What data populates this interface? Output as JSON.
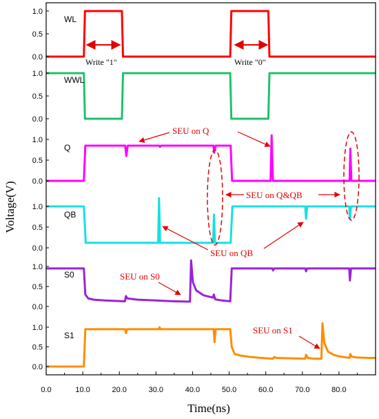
{
  "chart_data": {
    "type": "line",
    "xlabel": "Time(ns)",
    "ylabel": "Voltage(V)",
    "xlim": [
      0,
      90
    ],
    "x_ticks": [
      "0.0",
      "10.0",
      "20.0",
      "30.0",
      "40.0",
      "50.0",
      "60.0",
      "70.0",
      "80.0"
    ],
    "grid": false,
    "panels": [
      {
        "name": "WL",
        "color": "#ff0000",
        "ylim": [
          0,
          1
        ],
        "y_ticks": [
          "0.0",
          "0.5",
          "1.0"
        ],
        "points": [
          [
            0,
            0
          ],
          [
            10.3,
            0
          ],
          [
            10.6,
            1
          ],
          [
            20.7,
            1
          ],
          [
            21,
            0
          ],
          [
            50.3,
            0
          ],
          [
            50.6,
            1
          ],
          [
            60.7,
            1
          ],
          [
            61,
            0
          ],
          [
            90,
            0
          ]
        ]
      },
      {
        "name": "WWL",
        "color": "#1fc06a",
        "ylim": [
          0,
          1
        ],
        "y_ticks": [
          "0.0",
          "0.5",
          "1.0"
        ],
        "points": [
          [
            0,
            1
          ],
          [
            10.3,
            1
          ],
          [
            10.6,
            0
          ],
          [
            20.7,
            0
          ],
          [
            21,
            1
          ],
          [
            50.3,
            1
          ],
          [
            50.6,
            0
          ],
          [
            60.7,
            0
          ],
          [
            61,
            1
          ],
          [
            90,
            1
          ]
        ]
      },
      {
        "name": "Q",
        "color": "#ff00ff",
        "ylim": [
          0,
          1.0
        ],
        "y_ticks": [
          "0.0",
          "0.5",
          "1.0"
        ],
        "points": [
          [
            0,
            0
          ],
          [
            10.3,
            0
          ],
          [
            10.7,
            0.85
          ],
          [
            21.6,
            0.85
          ],
          [
            21.9,
            0.6
          ],
          [
            22.3,
            0.85
          ],
          [
            30.9,
            0.85
          ],
          [
            31.1,
            0.82
          ],
          [
            31.4,
            0.85
          ],
          [
            45.7,
            0.85
          ],
          [
            45.9,
            0.68
          ],
          [
            46.3,
            0.85
          ],
          [
            50.4,
            0.85
          ],
          [
            50.8,
            0.0
          ],
          [
            61.3,
            0.0
          ],
          [
            61.6,
            1.1
          ],
          [
            61.95,
            0.0
          ],
          [
            82.9,
            0.0
          ],
          [
            83.1,
            0.78
          ],
          [
            83.4,
            0.0
          ],
          [
            90,
            0.0
          ]
        ]
      },
      {
        "name": "QB",
        "color": "#17e0e0",
        "ylim": [
          0,
          1.0
        ],
        "y_ticks": [
          "0.0",
          "0.5",
          "1.0"
        ],
        "points": [
          [
            0,
            1.0
          ],
          [
            10.3,
            1.0
          ],
          [
            10.8,
            0.12
          ],
          [
            30.6,
            0.12
          ],
          [
            30.85,
            1.2
          ],
          [
            31.15,
            0.12
          ],
          [
            45.6,
            0.12
          ],
          [
            45.85,
            0.8
          ],
          [
            46.15,
            0.12
          ],
          [
            50.4,
            0.12
          ],
          [
            50.9,
            1.0
          ],
          [
            70.8,
            1.0
          ],
          [
            71.0,
            0.7
          ],
          [
            71.3,
            1.0
          ],
          [
            82.8,
            1.0
          ],
          [
            83.0,
            0.7
          ],
          [
            83.3,
            1.0
          ],
          [
            90,
            1.0
          ]
        ]
      },
      {
        "name": "S0",
        "color": "#9b22d6",
        "ylim": [
          0,
          1.0
        ],
        "y_ticks": [
          "0.0",
          "0.5",
          "1.0"
        ],
        "points": [
          [
            0,
            0.95
          ],
          [
            10.3,
            0.95
          ],
          [
            10.7,
            0.3
          ],
          [
            11.5,
            0.2
          ],
          [
            13,
            0.17
          ],
          [
            16,
            0.15
          ],
          [
            21.5,
            0.13
          ],
          [
            21.8,
            0.26
          ],
          [
            22.2,
            0.2
          ],
          [
            25,
            0.17
          ],
          [
            30,
            0.15
          ],
          [
            35,
            0.13
          ],
          [
            39.3,
            0.12
          ],
          [
            39.6,
            1.15
          ],
          [
            40.1,
            0.6
          ],
          [
            41,
            0.4
          ],
          [
            43,
            0.28
          ],
          [
            45.6,
            0.22
          ],
          [
            45.8,
            0.3
          ],
          [
            46.2,
            0.18
          ],
          [
            48,
            0.15
          ],
          [
            50.3,
            0.13
          ],
          [
            50.7,
            0.95
          ],
          [
            61.8,
            0.95
          ],
          [
            62,
            0.9
          ],
          [
            62.3,
            0.95
          ],
          [
            70.8,
            0.95
          ],
          [
            71,
            0.88
          ],
          [
            71.3,
            0.95
          ],
          [
            82.8,
            0.95
          ],
          [
            83,
            0.65
          ],
          [
            83.3,
            0.95
          ],
          [
            90,
            0.95
          ]
        ]
      },
      {
        "name": "S1",
        "color": "#ff8c00",
        "ylim": [
          0,
          1.0
        ],
        "y_ticks": [
          "0.0",
          "0.5",
          "1.0"
        ],
        "points": [
          [
            0,
            0
          ],
          [
            10.3,
            0
          ],
          [
            10.7,
            0.95
          ],
          [
            21.6,
            0.95
          ],
          [
            21.8,
            0.85
          ],
          [
            22.1,
            0.95
          ],
          [
            30.8,
            0.95
          ],
          [
            31,
            1.0
          ],
          [
            31.2,
            0.95
          ],
          [
            45.8,
            0.95
          ],
          [
            46,
            0.62
          ],
          [
            46.3,
            0.95
          ],
          [
            50.3,
            0.95
          ],
          [
            50.7,
            0.5
          ],
          [
            51.5,
            0.32
          ],
          [
            53,
            0.28
          ],
          [
            56,
            0.24
          ],
          [
            60,
            0.21
          ],
          [
            62,
            0.2
          ],
          [
            62.3,
            0.24
          ],
          [
            63,
            0.22
          ],
          [
            66,
            0.21
          ],
          [
            70.8,
            0.2
          ],
          [
            71,
            0.3
          ],
          [
            71.5,
            0.22
          ],
          [
            73,
            0.2
          ],
          [
            75.2,
            0.2
          ],
          [
            75.5,
            1.1
          ],
          [
            76,
            0.6
          ],
          [
            77,
            0.38
          ],
          [
            78.5,
            0.3
          ],
          [
            80,
            0.26
          ],
          [
            82.9,
            0.22
          ],
          [
            83.1,
            0.32
          ],
          [
            83.5,
            0.25
          ],
          [
            85,
            0.23
          ],
          [
            88,
            0.22
          ],
          [
            90,
            0.22
          ]
        ]
      }
    ],
    "annotations": {
      "write1": "Write \"1\"",
      "write0": "Write \"0\"",
      "seu_q": "SEU on Q",
      "seu_qqb": "SEU on Q&QB",
      "seu_qb": "SEU on QB",
      "seu_s0": "SEU on S0",
      "seu_s1": "SEU on S1"
    }
  }
}
